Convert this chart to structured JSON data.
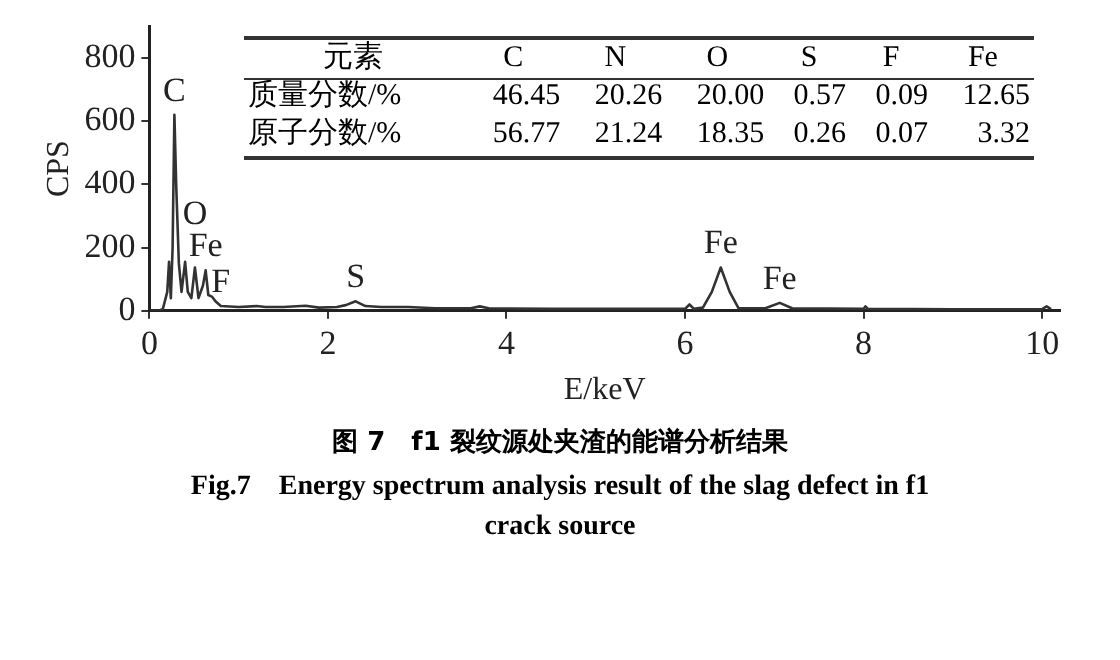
{
  "chart_data": {
    "type": "line",
    "title": "图 7　f1 裂纹源处夹渣的能谱分析结果",
    "subtitle": "Fig.7　Energy spectrum analysis result of the slag defect in f1 crack source",
    "xlabel": "E/keV",
    "ylabel": "CPS",
    "xlim": [
      0,
      10.2
    ],
    "xticks": [
      0,
      2,
      4,
      6,
      8,
      10
    ],
    "ylim": [
      0,
      900
    ],
    "yticks": [
      0,
      200,
      400,
      600,
      800
    ],
    "grid": false,
    "legend": false,
    "marker": "none",
    "line_style": "solid",
    "series": [
      {
        "color": "#333333",
        "x": [
          0,
          0.1,
          0.15,
          0.2,
          0.22,
          0.24,
          0.26,
          0.28,
          0.3,
          0.33,
          0.36,
          0.4,
          0.43,
          0.47,
          0.51,
          0.55,
          0.6,
          0.63,
          0.66,
          0.7,
          0.74,
          0.8,
          1.0,
          1.2,
          1.3,
          1.5,
          1.75,
          1.9,
          2.1,
          2.2,
          2.31,
          2.42,
          2.6,
          2.9,
          3.2,
          3.6,
          3.7,
          3.8,
          4.5,
          5.5,
          6.0,
          6.05,
          6.1,
          6.2,
          6.3,
          6.4,
          6.5,
          6.6,
          6.9,
          7.06,
          7.2,
          8.0,
          8.02,
          8.05,
          9.0,
          10.0,
          10.05,
          10.1
        ],
        "values": [
          0,
          0,
          5,
          60,
          155,
          40,
          200,
          620,
          400,
          150,
          60,
          155,
          60,
          40,
          137,
          40,
          80,
          128,
          50,
          45,
          30,
          15,
          12,
          15,
          12,
          12,
          16,
          10,
          12,
          18,
          30,
          15,
          12,
          12,
          8,
          8,
          14,
          8,
          6,
          6,
          6,
          20,
          6,
          10,
          60,
          137,
          60,
          8,
          8,
          25,
          8,
          6,
          14,
          6,
          5,
          5,
          14,
          5
        ]
      }
    ],
    "annotations": [
      {
        "text": "C",
        "x": 0.28,
        "y": 620
      },
      {
        "text": "F",
        "x": 0.8,
        "y": 15
      },
      {
        "text": "Fe",
        "x": 0.63,
        "y": 128
      },
      {
        "text": "O",
        "x": 0.51,
        "y": 137
      },
      {
        "text": "S",
        "x": 2.31,
        "y": 30
      },
      {
        "text": "Fe",
        "x": 6.4,
        "y": 137
      },
      {
        "text": "Fe",
        "x": 7.06,
        "y": 25
      },
      "元素 C N O S F Fe",
      "质量分数/% 46.45 20.26 20.00 0.57 0.09 12.65",
      "原子分数/% 56.77 21.24 18.35 0.26 0.07 3.32"
    ]
  }
}
